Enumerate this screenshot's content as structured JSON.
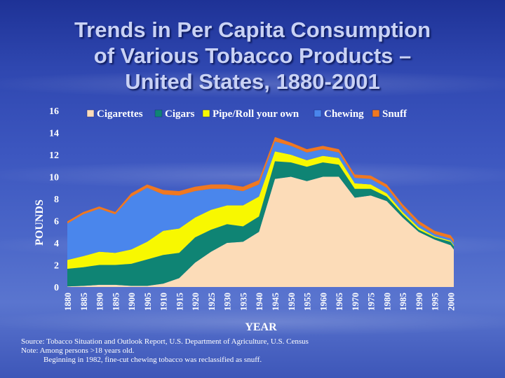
{
  "slide": {
    "title_lines": [
      "Trends in Per Capita Consumption",
      "of Various Tobacco Products –",
      "United States, 1880-2001"
    ],
    "notes": [
      "Source:  Tobacco Situation and Outlook Report, U.S. Department of Agriculture, U.S. Census",
      "Note:  Among persons >18 years old.",
      "Beginning in 1982, fine-cut chewing tobacco was  reclassified as snuff."
    ]
  },
  "colors": {
    "Cigarettes": "#fcdcb8",
    "Cigars": "#0f8474",
    "Pipe/Roll your own": "#f8f800",
    "Chewing": "#4a86ec",
    "Snuff": "#f07820"
  },
  "chart_data": {
    "type": "area",
    "stacked": true,
    "title": "",
    "xlabel": "YEAR",
    "ylabel": "POUNDS",
    "ylim": [
      0,
      16
    ],
    "xlim": [
      1880,
      2001
    ],
    "yticks": [
      "0",
      "2",
      "4",
      "6",
      "8",
      "10",
      "12",
      "14",
      "16"
    ],
    "xticks": [
      "1880",
      "1885",
      "1890",
      "1895",
      "1900",
      "1905",
      "1910",
      "1915",
      "1920",
      "1925",
      "1930",
      "1935",
      "1940",
      "1945",
      "1950",
      "1955",
      "1960",
      "1965",
      "1970",
      "1975",
      "1980",
      "1985",
      "1990",
      "1995",
      "2000"
    ],
    "legend": [
      "Cigarettes",
      "Cigars",
      "Pipe/Roll your own",
      "Chewing",
      "Snuff"
    ],
    "legend_position": "top",
    "x": [
      1880,
      1885,
      1890,
      1895,
      1900,
      1905,
      1910,
      1915,
      1920,
      1925,
      1930,
      1935,
      1940,
      1945,
      1950,
      1955,
      1960,
      1965,
      1970,
      1975,
      1980,
      1985,
      1990,
      1995,
      2000,
      2001
    ],
    "series": [
      {
        "name": "Cigarettes",
        "values": [
          0.05,
          0.1,
          0.2,
          0.2,
          0.1,
          0.1,
          0.3,
          0.8,
          2.2,
          3.2,
          4.0,
          4.1,
          5.0,
          9.8,
          10.0,
          9.6,
          10.0,
          10.0,
          8.1,
          8.3,
          7.8,
          6.3,
          5.0,
          4.3,
          3.8,
          3.4
        ]
      },
      {
        "name": "Cigars",
        "values": [
          1.6,
          1.7,
          1.8,
          1.8,
          2.0,
          2.4,
          2.6,
          2.3,
          2.3,
          2.0,
          1.7,
          1.4,
          1.4,
          1.6,
          1.3,
          1.3,
          1.3,
          1.1,
          0.8,
          0.6,
          0.4,
          0.3,
          0.2,
          0.2,
          0.3,
          0.3
        ]
      },
      {
        "name": "Pipe/Roll your own",
        "values": [
          0.8,
          1.0,
          1.2,
          1.1,
          1.3,
          1.6,
          2.2,
          2.2,
          1.8,
          1.8,
          1.7,
          1.9,
          1.8,
          0.9,
          0.7,
          0.6,
          0.6,
          0.6,
          0.5,
          0.4,
          0.3,
          0.2,
          0.2,
          0.1,
          0.1,
          0.1
        ]
      },
      {
        "name": "Chewing",
        "values": [
          3.3,
          3.8,
          3.9,
          3.5,
          4.8,
          4.9,
          3.3,
          3.0,
          2.4,
          1.9,
          1.5,
          1.3,
          1.1,
          0.9,
          0.8,
          0.7,
          0.6,
          0.5,
          0.5,
          0.5,
          0.5,
          0.4,
          0.3,
          0.2,
          0.2,
          0.2
        ]
      },
      {
        "name": "Snuff",
        "values": [
          0.2,
          0.2,
          0.2,
          0.2,
          0.3,
          0.3,
          0.4,
          0.4,
          0.4,
          0.4,
          0.4,
          0.4,
          0.4,
          0.4,
          0.3,
          0.3,
          0.3,
          0.3,
          0.3,
          0.3,
          0.3,
          0.3,
          0.3,
          0.3,
          0.3,
          0.3
        ]
      }
    ]
  }
}
